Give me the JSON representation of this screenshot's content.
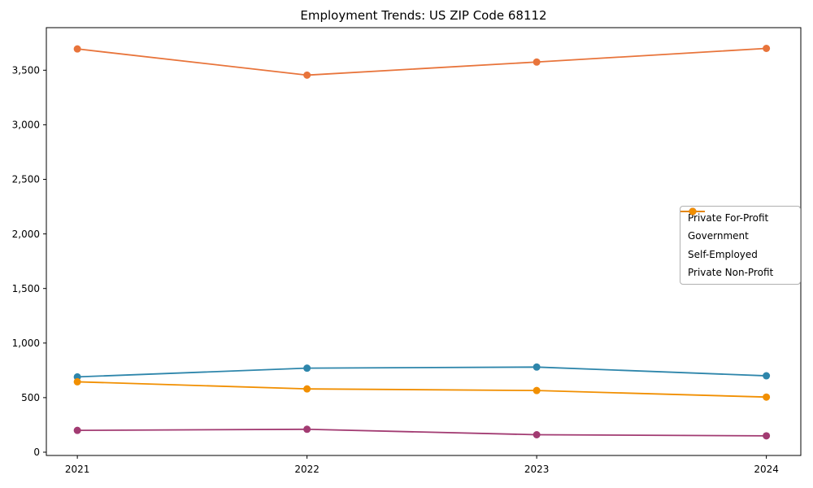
{
  "chart_data": {
    "type": "line",
    "title": "Employment Trends: US ZIP Code 68112",
    "xlabel": "",
    "ylabel": "",
    "x": [
      2021,
      2022,
      2023,
      2024
    ],
    "x_tick_labels": [
      "2021",
      "2022",
      "2023",
      "2024"
    ],
    "series": [
      {
        "name": "Private For-Profit",
        "color": "#E8743B",
        "values": [
          3695,
          3455,
          3575,
          3700
        ]
      },
      {
        "name": "Government",
        "color": "#2E86AB",
        "values": [
          690,
          770,
          780,
          700
        ]
      },
      {
        "name": "Self-Employed",
        "color": "#A23B72",
        "values": [
          200,
          210,
          160,
          150
        ]
      },
      {
        "name": "Private Non-Profit",
        "color": "#F18F01",
        "values": [
          645,
          580,
          565,
          505
        ]
      }
    ],
    "yticks": [
      0,
      500,
      1000,
      1500,
      2000,
      2500,
      3000,
      3500
    ],
    "ytick_labels": [
      "0",
      "500",
      "1,000",
      "1,500",
      "2,000",
      "2,500",
      "3,000",
      "3,500"
    ],
    "ylim": [
      -30,
      3890
    ],
    "xlim": [
      2020.865,
      2024.15
    ],
    "grid": false,
    "legend_position": "right",
    "marker": "circle",
    "axis_color": "#000000",
    "background_color": "#ffffff"
  }
}
